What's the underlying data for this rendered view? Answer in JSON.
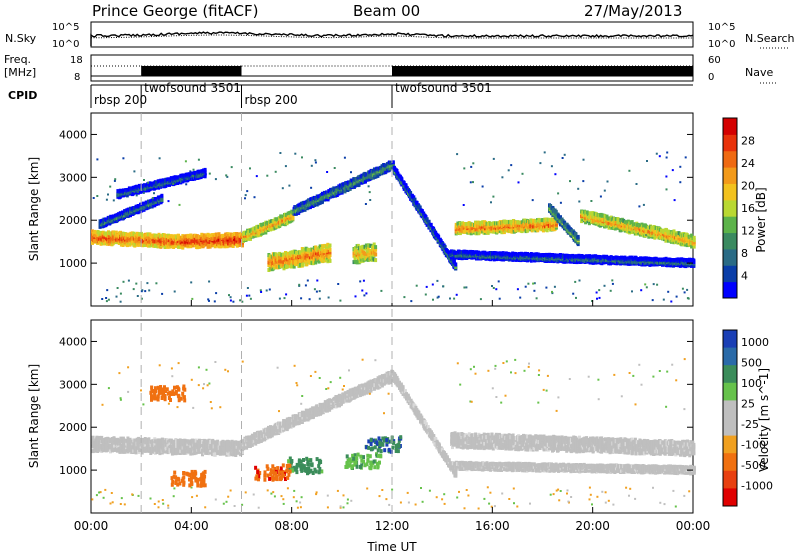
{
  "header": {
    "station": "Prince George (fitACF)",
    "beam": "Beam 00",
    "date": "27/May/2013"
  },
  "colors": {
    "power_scale": [
      "#0000ff",
      "#0a3ea8",
      "#2a6b85",
      "#3a8a60",
      "#5cb34a",
      "#b9d832",
      "#f3c21e",
      "#f39a1a",
      "#ef6a12",
      "#e8320a",
      "#d40000"
    ],
    "velocity_scale": [
      "#1a3fb5",
      "#2a6aa8",
      "#3b8c5a",
      "#66c24b",
      "#bfbfbf",
      "#bfbfbf",
      "#f0a020",
      "#f07010",
      "#e84010",
      "#e00000"
    ],
    "dashed_lines": "#b0b0b0"
  },
  "strips": {
    "nsky": {
      "left_label": "N.Sky",
      "left_ticks": [
        "10^5",
        "10^0"
      ],
      "right_label": "N.Search",
      "right_ticks": [
        "10^5",
        "10^0"
      ]
    },
    "freq": {
      "left_label_line1": "Freq.",
      "left_label_line2": "[MHz]",
      "left_ticks": [
        "18",
        "8"
      ],
      "right_label": "Nave",
      "right_ticks": [
        "60",
        "0"
      ]
    },
    "cpid": {
      "label": "CPID",
      "segments": [
        {
          "start_hour": 0,
          "label": "rbsp 200"
        },
        {
          "start_hour": 2,
          "label": "twofsound 3501"
        },
        {
          "start_hour": 6,
          "label": "rbsp 200"
        },
        {
          "start_hour": 12,
          "label": "twofsound 3501"
        }
      ]
    }
  },
  "chart_data": [
    {
      "type": "heatmap",
      "name": "power",
      "ylabel": "Slant Range [km]",
      "ylim": [
        0,
        4500
      ],
      "y_ticks": [
        "1000",
        "2000",
        "3000",
        "4000"
      ],
      "x_range_hours": [
        0,
        24
      ],
      "colorbar_label": "Power [dB]",
      "colorbar_ticks": [
        "4",
        "8",
        "12",
        "16",
        "20",
        "24",
        "28"
      ],
      "bands": [
        {
          "start": 0,
          "end": 3.5,
          "range_km": [
            1600,
            1500
          ],
          "width_km": 220,
          "intensity": 26
        },
        {
          "start": 3.5,
          "end": 6,
          "range_km": [
            1500,
            1550
          ],
          "width_km": 220,
          "intensity": 28
        },
        {
          "start": 6,
          "end": 8,
          "range_km": [
            1600,
            2100
          ],
          "width_km": 180,
          "intensity": 22
        },
        {
          "start": 8,
          "end": 12,
          "range_km": [
            2200,
            3300
          ],
          "width_km": 150,
          "intensity": 12
        },
        {
          "start": 0.3,
          "end": 2.8,
          "range_km": [
            1900,
            2500
          ],
          "width_km": 120,
          "intensity": 10
        },
        {
          "start": 1,
          "end": 4.5,
          "range_km": [
            2600,
            3100
          ],
          "width_km": 120,
          "intensity": 9
        },
        {
          "start": 7,
          "end": 9.5,
          "range_km": [
            1000,
            1250
          ],
          "width_km": 300,
          "intensity": 24
        },
        {
          "start": 10.4,
          "end": 11.3,
          "range_km": [
            1200,
            1250
          ],
          "width_km": 300,
          "intensity": 22
        },
        {
          "start": 12,
          "end": 14.5,
          "range_km": [
            3200,
            900
          ],
          "width_km": 120,
          "intensity": 10
        },
        {
          "start": 14.5,
          "end": 18.5,
          "range_km": [
            1800,
            1900
          ],
          "width_km": 200,
          "intensity": 24
        },
        {
          "start": 14.3,
          "end": 24,
          "range_km": [
            1200,
            1000
          ],
          "width_km": 120,
          "intensity": 9
        },
        {
          "start": 18.2,
          "end": 19.4,
          "range_km": [
            2300,
            1500
          ],
          "width_km": 140,
          "intensity": 14
        },
        {
          "start": 19.5,
          "end": 24,
          "range_km": [
            2100,
            1500
          ],
          "width_km": 200,
          "intensity": 22
        }
      ]
    },
    {
      "type": "heatmap",
      "name": "velocity",
      "ylabel": "Slant Range [km]",
      "xlabel": "Time UT",
      "ylim": [
        0,
        4500
      ],
      "y_ticks": [
        "1000",
        "2000",
        "3000",
        "4000"
      ],
      "x_ticks": [
        "00:00",
        "04:00",
        "08:00",
        "12:00",
        "16:00",
        "20:00",
        "00:00"
      ],
      "colorbar_label": "Velocity [m s^-1]",
      "colorbar_ticks": [
        "1000",
        "500",
        "100",
        "25",
        "-25",
        "-100",
        "-500",
        "-1000"
      ],
      "ground_scatter_bands": [
        {
          "start": 0,
          "end": 6,
          "range_km": [
            1600,
            1500
          ],
          "width_km": 250
        },
        {
          "start": 6,
          "end": 12,
          "range_km": [
            1600,
            3200
          ],
          "width_km": 180
        },
        {
          "start": 12,
          "end": 14.5,
          "range_km": [
            3200,
            900
          ],
          "width_km": 130
        },
        {
          "start": 14.3,
          "end": 24,
          "range_km": [
            1700,
            1500
          ],
          "width_km": 250
        },
        {
          "start": 14.3,
          "end": 24,
          "range_km": [
            1100,
            1000
          ],
          "width_km": 120
        }
      ],
      "ionospheric_patches": [
        {
          "center_hour": 8.5,
          "range_km": 1100,
          "velocity": 150
        },
        {
          "center_hour": 10.8,
          "range_km": 1200,
          "velocity": 80
        },
        {
          "center_hour": 3.8,
          "range_km": 800,
          "velocity": -300
        },
        {
          "center_hour": 3.0,
          "range_km": 2800,
          "velocity": -200
        },
        {
          "center_hour": 7.2,
          "range_km": 950,
          "velocity": -400
        },
        {
          "center_hour": 11.6,
          "range_km": 1600,
          "velocity": 500
        }
      ]
    }
  ]
}
